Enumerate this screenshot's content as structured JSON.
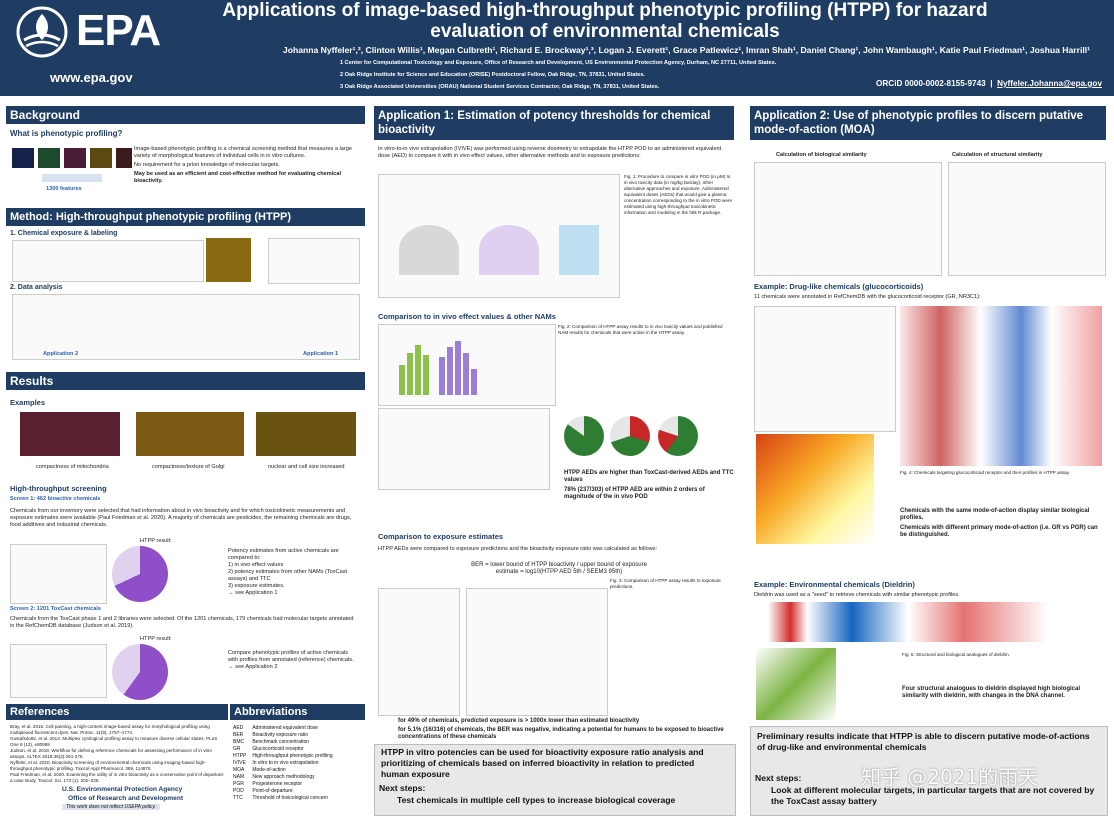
{
  "header": {
    "logo_text": "EPA",
    "url": "www.epa.gov",
    "title": "Applications of image-based high-throughput phenotypic profiling (HTPP) for hazard evaluation of environmental chemicals",
    "authors": "Johanna Nyffeler¹,², Clinton Willis¹, Megan Culbreth¹, Richard E. Brockway¹,³, Logan J. Everett¹, Grace Patlewicz¹, Imran Shah¹, Daniel Chang¹, John Wambaugh¹, Katie Paul Friedman¹, Joshua Harrill¹",
    "affiliations": [
      "1 Center for Computational Toxicology and Exposure, Office of Research and Development, US Environmental Protection Agency, Durham, NC 27711, United States.",
      "2 Oak Ridge Institute for Science and Education (ORISE) Postdoctoral Fellow, Oak Ridge, TN, 37831, United States.",
      "3 Oak Ridge Associated Universities (ORAU) National Student Services Contractor, Oak Ridge, TN, 37831, United States."
    ],
    "orcid": "ORCiD 0000-0002-8155-9743",
    "email": "Nyffeler.Johanna@epa.gov"
  },
  "left": {
    "background_title": "Background",
    "phenotypic_q": "What is phenotypic profiling?",
    "bullets": [
      "Image-based phenotypic profiling is a chemical screening method that measures a large variety of morphological features of individual cells in in vitro cultures.",
      "No requirement for a priori knowledge of molecular targets.",
      "May be used as an efficient and cost-effective method for evaluating chemical bioactivity."
    ],
    "features_label": "1300 features",
    "method_title": "Method: High-throughput phenotypic profiling (HTPP)",
    "step1": "1. Chemical exposure & labeling",
    "step2": "2. Data analysis",
    "app2": "Application 2",
    "app1": "Application 1",
    "results_title": "Results",
    "examples": "Examples",
    "ex1": "compactness of mitochondria",
    "ex2": "compactness/texture of Golgi",
    "ex3": "nuclear and cell size increased",
    "screening_title": "High-throughput screening",
    "screen1": "Screen 1: 462 bioactive chemicals",
    "screen1_text": "Chemicals from our inventory were selected that had information about in vivo bioactivity and for which toxicokinetic measurements and exposure estimates were available (Paul Friedman et al. 2020). A majority of chemicals are pesticides, the remaining chemicals are drugs, food additives and industrial chemicals.",
    "htpp_result": "HTPP result:",
    "screen1_list": [
      "Potency estimates from active chemicals are compared to:",
      "1) in vivo effect values",
      "2) potency estimates from other NAMs (ToxCast assays) and TTC",
      "3) exposure estimates.",
      "→ see Application 1"
    ],
    "screen2": "Screen 2: 1201 ToxCast chemicals",
    "screen2_text": "Chemicals from the ToxCast phase 1 and 2 libraries were selected. Of the 1201 chemicals, 179 chemicals had molecular targets annotated in the RefChemDB database (Judson et al. 2019).",
    "screen2_list": [
      "Compare phenotypic profiles of active chemicals with profiles from annotated (reference) chemicals.",
      "→ see Application 2"
    ],
    "references_title": "References",
    "references": [
      "Bray, et al. 2016. Cell painting, a high-content image-based assay for morphological profiling using multiplexed fluorescent dyes. Nat. Protoc. 11(9), 1757–1774.",
      "Gustafsdottir, et al. 2013. Multiplex cytological profiling assay to measure diverse cellular states. PLoS One 8 (12), e80999",
      "Judson, et al. 2019. Workflow for defining reference chemicals for assessing performance of in vitro assays. ALTEX 2019;36(2):261-276.",
      "Nyffeler, et al. 2020. Bioactivity screening of environmental chemicals using imaging-based high-throughput phenotypic profiling. Toxicol Appl Pharmacol. 389, 114876",
      "Paul Friedman, et al. 2020. Examining the utility of in vitro bioactivity as a conservative point of departure: a case study. Toxicol. Sci. 173 (1), 202–225."
    ],
    "agency": "U.S. Environmental Protection Agency",
    "office": "Office of Research and Development",
    "disclaimer": "This work does not reflect USEPA policy.",
    "abbreviations_title": "Abbreviations",
    "abbreviations": [
      [
        "AED",
        "Administered equivalent dose"
      ],
      [
        "BER",
        "Bioactivity exposure ratio"
      ],
      [
        "BMC",
        "Benchmark concentration"
      ],
      [
        "GR",
        "Glucocorticoid receptor"
      ],
      [
        "HTPP",
        "High-throughput phenotypic profiling"
      ],
      [
        "IVIVE",
        "In vitro to in vivo extrapolation"
      ],
      [
        "MOA",
        "Mode-of-action"
      ],
      [
        "NAM",
        "New approach methodology"
      ],
      [
        "PGR",
        "Progesterone receptor"
      ],
      [
        "POD",
        "Point-of-departure"
      ],
      [
        "TTC",
        "Threshold of toxicological concern"
      ]
    ]
  },
  "mid": {
    "app1_title": "Application 1: Estimation of potency thresholds for chemical bioactivity",
    "intro": "In vitro-to-in vivo extrapolation (IVIVE) was performed using reverse dosimetry to extrapolate the HTPP POD to an administered equivalent dose (AED) to compare it with in vivo effect values, other alternative methods and to exposure predictions:",
    "fig1_caption": "Fig. 1: Procedure to compare in vitro POD (in μM) to in vivo toxicity data (in mg/kg bw/day), other alternative approaches and exposure. Administered equivalent doses (AEDs) that would give a plasma concentration corresponding to the in vitro POD were estimated using high-throughput toxicokinetic information and modeling in the httk R package.",
    "comparison_title": "Comparison to in vivo effect values & other NAMs",
    "fig2_caption": "Fig. 2: Comparison of HTPP assay results to in vivo toxicity values and published NAM results for chemicals that were active in the HTPP assay.",
    "bullet_a": "HTPP AEDs are higher than ToxCast-derived AEDs and TTC values",
    "bullet_b": "78% (237/303) of HTPP AED are within 2 orders of magnitude of the in vivo POD",
    "exposure_title": "Comparison to exposure estimates",
    "exposure_intro": "HTPP AEDs were compared to exposure predictions and the bioactivity exposure ratio was calculated as follows:",
    "ber_formula": "BER = lower bound of HTPP bioactivity / upper bound of exposure estimate = log10(HTPP AED 5th / SEEM3 95th)",
    "fig3_caption": "Fig. 3: Comparison of HTPP assay results to exposure predictions.",
    "bullet_c": "for 49% of chemicals, predicted exposure is > 1000x lower than estimated bioactivity",
    "bullet_d": "for 5.1% (16/316) of chemicals, the BER was negative, indicating a potential for humans to be exposed to bioactive concentrations of these chemicals",
    "conclusion": "HTPP in vitro potencies can be used for bioactivity exposure ratio analysis and prioritizing of chemicals based on inferred bioactivity in relation to predicted human exposure",
    "next_steps": "Next steps:",
    "next_step_1": "Test chemicals in multiple cell types to increase biological coverage"
  },
  "right": {
    "app2_title": "Application 2: Use of phenotypic profiles to discern putative mode-of-action (MOA)",
    "calc_bio": "Calculation of biological similarity",
    "calc_struct": "Calculation of structural similarity",
    "drug_title": "Example: Drug-like chemicals (glucocorticoids)",
    "drug_text": "11 chemicals were annotated in RefChemDB with the glucocorticoid receptor (GR, NR3C1):",
    "fig4_caption": "Fig. 4: Chemicals targeting glucocorticoid receptor and their profiles in HTPP assay.",
    "bullet_e": "Chemicals with the same mode-of-action display similar biological profiles.",
    "bullet_f": "Chemicals with different primary mode-of-action (i.e. GR vs PGR) can be distinguished.",
    "env_title": "Example: Environmental chemicals (Dieldrin)",
    "env_text": "Dieldrin was used as a \"seed\" to retrieve chemicals with similar phenotypic profiles.",
    "fig5_caption": "Fig. 5: Structural and biological analogues of dieldrin.",
    "bullet_g": "Four structural analogues to dieldrin displayed high biological similarity with dieldrin, with changes in the DNA channel.",
    "conclusion": "Preliminary results indicate that HTPP is able to discern putative mode-of-actions of drug-like and environmental chemicals",
    "next_steps": "Next steps:",
    "next_step_1": "Look at different molecular targets, in particular targets that are not covered by the ToxCast assay battery",
    "watermark": "知乎 @2021的雨天"
  },
  "colors": {
    "navy": "#1f3d63",
    "accent": "#2b62b0",
    "concl_bg": "#e8e8e8"
  }
}
